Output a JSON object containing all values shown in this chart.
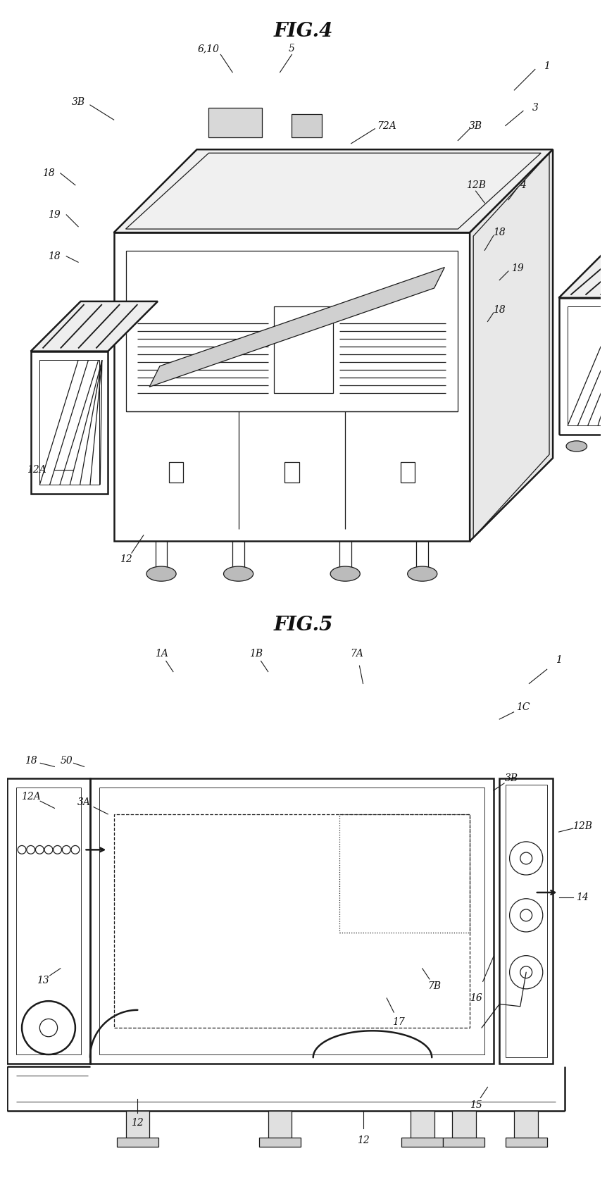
{
  "fig_title1": "FIG.4",
  "fig_title2": "FIG.5",
  "bg_color": "#ffffff",
  "line_color": "#1a1a1a",
  "lw_main": 1.8,
  "lw_thin": 0.9,
  "lw_leader": 0.8,
  "fs_label": 10,
  "fs_title": 20
}
